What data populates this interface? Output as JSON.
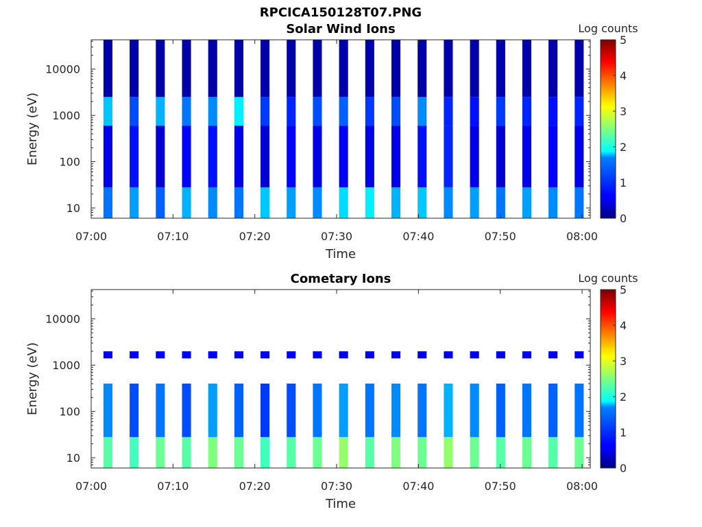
{
  "figure_title": "RPCICA150128T07.PNG",
  "chart_data": [
    {
      "type": "heatmap",
      "title": "Solar Wind Ions",
      "xlabel": "Time",
      "ylabel": "Energy (eV)",
      "x_scale": "time",
      "y_scale": "log",
      "xlim": [
        "07:00",
        "08:01"
      ],
      "ylim": [
        6,
        43000
      ],
      "xticks": [
        "07:00",
        "07:10",
        "07:20",
        "07:30",
        "07:40",
        "07:50",
        "08:00"
      ],
      "yticks": [
        10,
        100,
        1000,
        10000
      ],
      "ytick_labels": [
        "10",
        "100",
        "1000",
        "10000"
      ],
      "colorbar": {
        "label": "Log counts",
        "min": 0,
        "max": 5,
        "ticks": [
          "0",
          "1",
          "2",
          "3",
          "4",
          "5"
        ],
        "colormap": "jet"
      },
      "sweep_starts_min": [
        1.5,
        4.7,
        7.9,
        11.1,
        14.3,
        17.5,
        20.7,
        23.9,
        27.1,
        30.3,
        33.5,
        36.7,
        39.9,
        43.1,
        46.3,
        49.5,
        52.7,
        55.9,
        59.1
      ],
      "bands": [
        {
          "energy_min": 6,
          "energy_max": 28,
          "log_counts": [
            1.2,
            1.4,
            1.1,
            1.5,
            1.3,
            1.2,
            1.6,
            1.4,
            1.3,
            1.7,
            1.8,
            1.5,
            1.6,
            1.3,
            1.4,
            1.2,
            1.4,
            1.3,
            1.2
          ]
        },
        {
          "energy_min": 28,
          "energy_max": 600,
          "log_counts": [
            0.5,
            0.7,
            0.4,
            0.6,
            0.7,
            0.5,
            0.4,
            0.6,
            0.5,
            0.6,
            0.5,
            0.5,
            0.7,
            0.8,
            0.5,
            0.4,
            0.5,
            0.6,
            0.5
          ]
        },
        {
          "energy_min": 600,
          "energy_max": 2500,
          "log_counts": [
            1.6,
            1.0,
            1.5,
            1.2,
            1.3,
            1.8,
            0.9,
            0.8,
            1.0,
            1.1,
            0.9,
            1.0,
            1.3,
            0.8,
            0.7,
            0.9,
            0.8,
            0.7,
            0.8
          ]
        },
        {
          "energy_min": 2500,
          "energy_max": 43000,
          "log_counts": [
            0.2,
            0.2,
            0.2,
            0.2,
            0.2,
            0.2,
            0.2,
            0.2,
            0.2,
            0.2,
            0.2,
            0.2,
            0.2,
            0.2,
            0.2,
            0.2,
            0.2,
            0.2,
            0.2
          ]
        }
      ]
    },
    {
      "type": "heatmap",
      "title": "Cometary Ions",
      "xlabel": "Time",
      "ylabel": "Energy (eV)",
      "x_scale": "time",
      "y_scale": "log",
      "xlim": [
        "07:00",
        "08:01"
      ],
      "ylim": [
        6,
        43000
      ],
      "xticks": [
        "07:00",
        "07:10",
        "07:20",
        "07:30",
        "07:40",
        "07:50",
        "08:00"
      ],
      "yticks": [
        10,
        100,
        1000,
        10000
      ],
      "ytick_labels": [
        "10",
        "100",
        "1000",
        "10000"
      ],
      "colorbar": {
        "label": "Log counts",
        "min": 0,
        "max": 5,
        "ticks": [
          "0",
          "1",
          "2",
          "3",
          "4",
          "5"
        ],
        "colormap": "jet"
      },
      "sweep_starts_min": [
        1.5,
        4.7,
        7.9,
        11.1,
        14.3,
        17.5,
        20.7,
        23.9,
        27.1,
        30.3,
        33.5,
        36.7,
        39.9,
        43.1,
        46.3,
        49.5,
        52.7,
        55.9,
        59.1
      ],
      "bands": [
        {
          "energy_min": 6,
          "energy_max": 28,
          "log_counts": [
            2.3,
            2.2,
            2.4,
            2.3,
            2.5,
            2.4,
            2.2,
            2.3,
            2.4,
            2.6,
            2.3,
            2.5,
            2.4,
            2.6,
            2.4,
            2.3,
            2.4,
            2.3,
            2.4
          ]
        },
        {
          "energy_min": 28,
          "energy_max": 400,
          "log_counts": [
            1.3,
            1.0,
            1.2,
            1.0,
            1.4,
            1.1,
            0.9,
            1.0,
            1.2,
            1.4,
            1.2,
            1.3,
            1.2,
            1.5,
            1.3,
            1.1,
            1.2,
            1.1,
            1.2
          ]
        },
        {
          "energy_min": 1400,
          "energy_max": 2000,
          "log_counts": [
            0.6,
            0.6,
            0.6,
            0.6,
            0.6,
            0.5,
            0.5,
            0.6,
            0.5,
            0.5,
            0.5,
            0.5,
            0.5,
            0.5,
            0.5,
            0.5,
            0.6,
            0.5,
            0.5
          ]
        }
      ]
    }
  ]
}
